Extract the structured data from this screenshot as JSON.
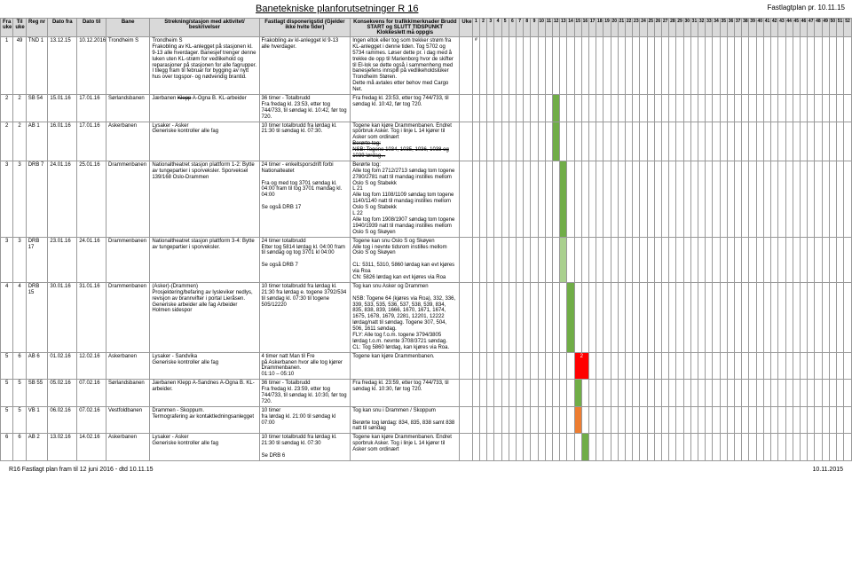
{
  "header": {
    "title": "Banetekniske planforutsetninger R 16",
    "right": "Fastlagtplan pr. 10.11.15"
  },
  "columns": {
    "fra_uke": "Fra uke",
    "til_uke": "Til uke",
    "reg_nr": "Reg nr",
    "dato_fra": "Dato fra",
    "dato_til": "Dato til",
    "bane": "Bane",
    "strekning": "Strekning/stasjon med aktivitet/ beskrivelser",
    "fastlagt": "Fastlagt disponerigstid (Gjelder ikke hvite tider)",
    "konsekvens": "Konsekvens for trafikk/merknader Brudd START og SLUTT TIDSPUNKT Klokkeslett må oppgis",
    "uke": "Uke"
  },
  "weeks": [
    "1",
    "2",
    "3",
    "4",
    "5",
    "6",
    "7",
    "8",
    "9",
    "10",
    "11",
    "12",
    "13",
    "14",
    "15",
    "16",
    "17",
    "18",
    "19",
    "20",
    "21",
    "22",
    "23",
    "24",
    "25",
    "26",
    "27",
    "28",
    "29",
    "30",
    "31",
    "32",
    "33",
    "34",
    "35",
    "36",
    "37",
    "38",
    "39",
    "40",
    "41",
    "42",
    "43",
    "44",
    "45",
    "46",
    "47",
    "48",
    "49",
    "50",
    "51",
    "52"
  ],
  "rows": [
    {
      "fra": "1",
      "til": "49",
      "reg": "TND 1",
      "dfra": "13.12.15",
      "dtil": "10.12.2016",
      "bane": "Trondheim S",
      "strek": "Trondheim S\nFrakobling av KL-anlegget på stasjonen kl. 9-13 alle hverdager. Banesjef trenger denne luken uten KL-strøm for vedlikehold og reparasjoner på stasjonen for alle fagrupper.\nI tilegg fram til februar for bygging av nytt hus over togspor- og nødvendig brantid.",
      "fast": "Frakobling av kl-anlegget kl 9-13 alle hverdager.",
      "kons": "Ingen eltok eller tog som trekker strøm fra KL-anlegget i denne tiden. Tog 5702 og 5734 rammes. Løser dette pr. i dag med å trekke de opp til Marienborg hvor de skifter til El-lok se dette også i sammenheng med banesjefens innspill på vedlikeholdsluker Trondheim Støren.\nDette må avtales etter behov med Cargo Net.",
      "mark": {
        "col": 0,
        "cls": "mark-err",
        "txt": "#"
      }
    },
    {
      "fra": "2",
      "til": "2",
      "reg": "SB 54",
      "dfra": "15.01.16",
      "dtil": "17.01.16",
      "bane": "Sørlandsbanen",
      "strek": "Jærbanen Klepp A-Ogna B. KL-arbeider",
      "strek_strike": "Klepp",
      "fast": "36 timer - Totalbrudd\nFra fredag kl. 23:53, etter tog 744/733, til søndag kl. 10:42, før tog 720.",
      "kons": "Fra fredag kl. 23:53, etter tog 744/733, til søndag kl. 10:42, før tog 720.",
      "mark": {
        "col": 11,
        "cls": "mark-green"
      }
    },
    {
      "fra": "2",
      "til": "2",
      "reg": "AB 1",
      "dfra": "16.01.16",
      "dtil": "17.01.16",
      "bane": "Askerbanen",
      "strek": "Lysaker - Asker\nGeneriske kontroller alle fag",
      "fast": "10 timer totalbrudd fra lørdag kl. 21:30 til søndag kl. 07:30.",
      "kons": "Togene kan kjøre Drammenbanen. Endret sporbruk Asker. Tog i linje L 14 kjører til Asker som ordinært\nBerørte tog:\nNSB: Togene 1034, 1035, 1036, 1038 og 1039 lørdag...",
      "kons_strike": [
        "Berørte tog:",
        "NSB: Togene 1034, 1035, 1036, 1038 og 1039 lørdag..."
      ],
      "mark": {
        "col": 11,
        "cls": "mark-green"
      }
    },
    {
      "fra": "3",
      "til": "3",
      "reg": "DRB 7",
      "dfra": "24.01.16",
      "dtil": "25.01.16",
      "bane": "Drammenbanen",
      "strek": "Nationaltheatret stasjon plattform 1-2: Bytte av tungepartier i sporveksler. Sporveksel 139/168 Oslo-Drammen",
      "fast": "24 timer - enkeltsporsdrift forbi Nationalteatet\n\nFra og med tog 3701 søndag kl. 04:00 fram til tog 3701 mandag kl. 04:00\n\nSe også DRB 17",
      "kons": "Berørte tog:\nAlle tog fom 2712/2713 søndag tom togene 2780/2781 natt til mandag instilles mellom Oslo S og Stabekk\nL 21\nAlle tog fom 1108/1109 søndag tom togene 1140/1140 natt til mandag instilles mellom Oslo S og Stabekk\nL 22\nAlle tog fom 1908/1907 søndag tom togene 1940/1939 natt til mandag instilles mellom Oslo S og Skøyen",
      "mark": {
        "col": 12,
        "cls": "mark-green"
      }
    },
    {
      "fra": "3",
      "til": "3",
      "reg": "DRB 17",
      "dfra": "23.01.16",
      "dtil": "24.01.16",
      "bane": "Drammenbanen",
      "strek": "Nationaltheatret stasjon plattform 3-4: Bytte av tungepartier i sporveksler.",
      "fast": "24 timer totalbrudd\nEtter tog 5814 lørdag kl. 04:00 fram til søndag og tog 3701 kl 04:00\n\nSe også DRB 7",
      "kons": "Togene kan snu Oslo S og Skøyen\nAlle tog i nevnte tidsrom instilles mellom Oslo S og Skøyen\n\nCL: 5311, 5310, 5860 lørdag kan evt kjøres via Roa\nCN: 5826 lørdag kan evt kjøres via Roa",
      "mark": {
        "col": 12,
        "cls": "mark-green-lt"
      }
    },
    {
      "fra": "4",
      "til": "4",
      "reg": "DRB 15",
      "dfra": "30.01.16",
      "dtil": "31.01.16",
      "bane": "Drammenbanen",
      "strek": "(Asker)-(Drammen)\nProsjektering/befaring av lysleviker nedlys, revisjon av brannvifter i portal Lieråsen. Generiske arbeider alle fag Arbeider Holmen sidespor",
      "fast": "10 timer totalbrudd fra lørdag kl. 21:30 fra lørdag e. togene 3792/534 til søndag kl. 07:30 til togene 505/12220",
      "kons": "Tog kan snu Asker og Drammen\n\nNSB: Togene 64 (kjøres via Roa), 332, 336, 339, 533, 535, 536, 537, 538, 539, 834, 835, 838, 839, 1666, 1670, 1671, 1674, 1675, 1678, 1679, 2281, 12201, 12222 lørdag/natt til søndag. Togene 307, 504, 506, 1611 søndag.\nFLY: Alle tog f.o.m. togene 3794/3805 lørdag t.o.m. nevnte 3708/3721 søndag.\nCL: Tog 5860 lørdag, kan kjøres via Roa.",
      "mark": {
        "col": 13,
        "cls": "mark-green"
      }
    },
    {
      "fra": "5",
      "til": "6",
      "reg": "AB 6",
      "dfra": "01.02.16",
      "dtil": "12.02.16",
      "bane": "Askerbanen",
      "strek": "Lysaker - Sandvika\nGeneriske kontroller alle fag",
      "fast": "4 timer natt Man til Fre\npå Askerbanen hvor alle tog kjører Drammenbanen.\n01:10 – 05:10",
      "kons": "Togene kan kjøre Drammenbanen.",
      "mark": {
        "col": 14,
        "cls": "mark-red",
        "txt": "2",
        "span": 2
      }
    },
    {
      "fra": "5",
      "til": "5",
      "reg": "SB 55",
      "dfra": "05.02.16",
      "dtil": "07.02.16",
      "bane": "Sørlandsbanen",
      "strek": "Jærbanen Klepp A-Sandnes A-Ogna B. KL-arbeider.",
      "strek_strike": "Klepp A Sandnes",
      "fast": "36 timer - Totalbrudd\nFra fredag kl. 23:59, etter tog 744/733, til søndag kl. 10:30, før tog 720.",
      "kons": "Fra fredag kl. 23:59, etter tog 744/733, til søndag kl. 10:30, før tog 720.",
      "mark": {
        "col": 14,
        "cls": "mark-green"
      }
    },
    {
      "fra": "5",
      "til": "5",
      "reg": "VB 1",
      "dfra": "06.02.16",
      "dtil": "07.02.16",
      "bane": "Vestfoldbanen",
      "strek": "Drammen - Skoppum.\nTermografering av kontaktledningsanlegget",
      "fast": "10 timer\nfra lørdag kl. 21:00 til søndag kl 07:00",
      "kons": "Tog kan snu i Drammen / Skoppum\n\nBerørte tog lørdag: 834, 835, 838 samt 838 natt til søndag",
      "mark": {
        "col": 14,
        "cls": "mark-orange"
      }
    },
    {
      "fra": "6",
      "til": "6",
      "reg": "AB 2",
      "dfra": "13.02.16",
      "dtil": "14.02.16",
      "bane": "Askerbanen",
      "strek": "Lysaker - Asker\nGeneriske kontroller alle fag",
      "fast": "10 timer totalbrudd fra lørdag kl. 21:30 til søndag kl. 07:30\n\nSe DRB 6",
      "kons": "Togene kan kjøre Drammenbanen. Endret sporbruk Asker. Tog i linje L 14 kjører til Asker som ordinært",
      "mark": {
        "col": 15,
        "cls": "mark-green"
      }
    }
  ],
  "footer": {
    "left": "R16 Fastlagt plan fram til 12 juni 2016 - dtd 10.11.15",
    "right": "10.11.2015"
  }
}
